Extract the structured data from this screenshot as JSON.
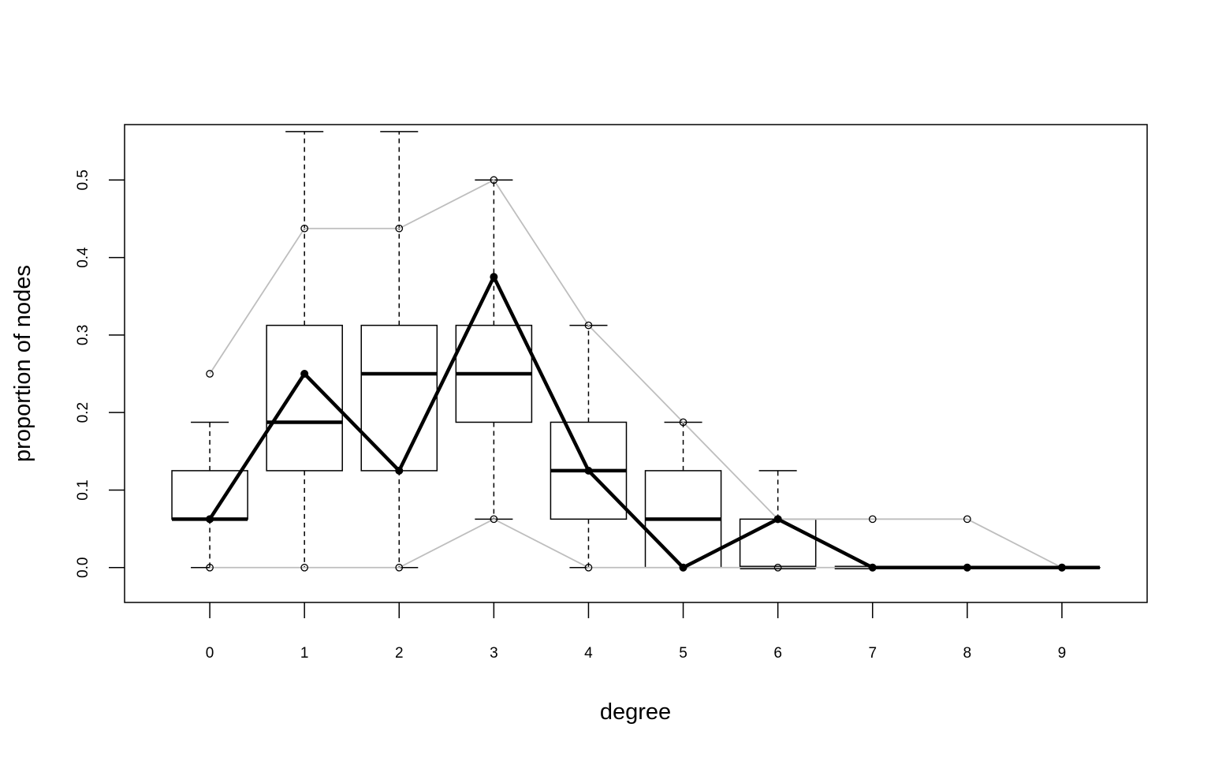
{
  "chart_data": {
    "type": "boxplot",
    "title": "",
    "xlabel": "degree",
    "ylabel": "proportion of nodes",
    "x": [
      0,
      1,
      2,
      3,
      4,
      5,
      6,
      7,
      8,
      9
    ],
    "x_tick_labels": [
      "0",
      "1",
      "2",
      "3",
      "4",
      "5",
      "6",
      "7",
      "8",
      "9"
    ],
    "y_ticks": [
      0.0,
      0.1,
      0.2,
      0.3,
      0.4,
      0.5
    ],
    "y_tick_labels": [
      "0.0",
      "0.1",
      "0.2",
      "0.3",
      "0.4",
      "0.5"
    ],
    "xlim": [
      -0.9,
      9.9
    ],
    "ylim": [
      -0.045,
      0.5715
    ],
    "grid": false,
    "legend": "none",
    "boxes": [
      {
        "x": 0,
        "whisker_low": 0.0,
        "q1": 0.0625,
        "median": 0.0625,
        "q3": 0.125,
        "whisker_high": 0.1875
      },
      {
        "x": 1,
        "whisker_low": 0.0,
        "q1": 0.125,
        "median": 0.1875,
        "q3": 0.3125,
        "whisker_high": 0.5625
      },
      {
        "x": 2,
        "whisker_low": 0.0,
        "q1": 0.125,
        "median": 0.25,
        "q3": 0.3125,
        "whisker_high": 0.5625
      },
      {
        "x": 3,
        "whisker_low": 0.0625,
        "q1": 0.1875,
        "median": 0.25,
        "q3": 0.3125,
        "whisker_high": 0.5
      },
      {
        "x": 4,
        "whisker_low": 0.0,
        "q1": 0.0625,
        "median": 0.125,
        "q3": 0.1875,
        "whisker_high": 0.3125
      },
      {
        "x": 5,
        "whisker_low": 0.0,
        "q1": 0.0,
        "median": 0.0625,
        "q3": 0.125,
        "whisker_high": 0.1875
      },
      {
        "x": 6,
        "whisker_low": 0.0,
        "q1": 0.0,
        "median": 0.0,
        "q3": 0.0625,
        "whisker_high": 0.125
      },
      {
        "x": 7,
        "whisker_low": 0.0,
        "q1": 0.0,
        "median": 0.0,
        "q3": 0.0,
        "whisker_high": 0.0
      },
      {
        "x": 8,
        "whisker_low": 0.0,
        "q1": 0.0,
        "median": 0.0,
        "q3": 0.0,
        "whisker_high": 0.0
      },
      {
        "x": 9,
        "whisker_low": 0.0,
        "q1": 0.0,
        "median": 0.0,
        "q3": 0.0,
        "whisker_high": 0.0
      }
    ],
    "series": [
      {
        "style": "upper-bound-gray",
        "color": "#bebebe",
        "values": [
          0.25,
          0.4375,
          0.4375,
          0.5,
          0.3125,
          0.1875,
          0.0625,
          0.0625,
          0.0625,
          0.0
        ]
      },
      {
        "style": "lower-bound-gray",
        "color": "#bebebe",
        "values": [
          0.0,
          0.0,
          0.0,
          0.0625,
          0.0,
          0.0,
          0.0,
          0.0,
          0.0,
          0.0
        ]
      },
      {
        "style": "observed-bold-black",
        "color": "#000000",
        "values": [
          0.0625,
          0.25,
          0.125,
          0.375,
          0.125,
          0.0,
          0.0625,
          0.0,
          0.0,
          0.0
        ]
      }
    ]
  }
}
